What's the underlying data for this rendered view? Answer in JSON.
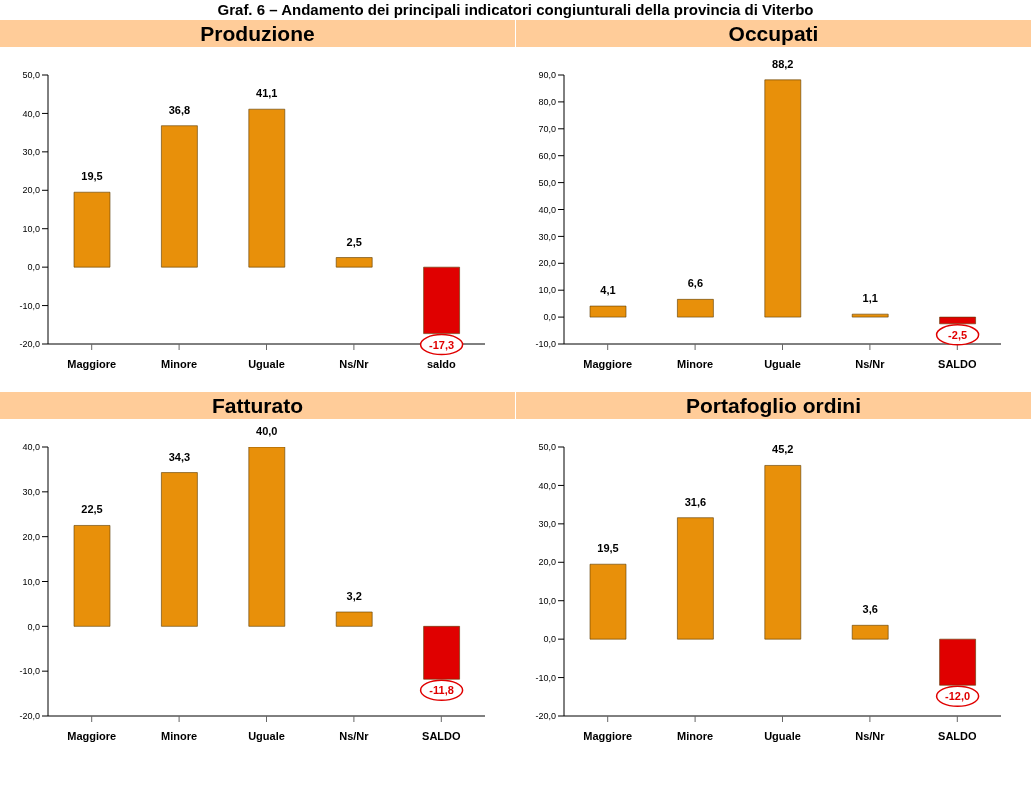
{
  "chart_data": [
    {
      "type": "bar",
      "title": "Produzione",
      "annotations": [
        "Graf. 6 – Andamento dei principali indicatori congiunturali della provincia di Viterbo"
      ],
      "categories": [
        "Maggiore",
        "Minore",
        "Uguale",
        "Ns/Nr",
        "saldo"
      ],
      "values": [
        19.5,
        36.8,
        41.1,
        2.5,
        -17.3
      ],
      "value_labels": [
        "19,5",
        "36,8",
        "41,1",
        "2,5",
        "-17,3"
      ],
      "colors": [
        "#e8900a",
        "#e8900a",
        "#e8900a",
        "#e8900a",
        "#e00000"
      ],
      "ylim": [
        -20,
        50
      ],
      "yticks": [
        {
          "value": -20,
          "label": "-20,0"
        },
        {
          "value": -10,
          "label": "-10,0"
        },
        {
          "value": 0,
          "label": "0,0"
        },
        {
          "value": 10,
          "label": "10,0"
        },
        {
          "value": 20,
          "label": "20,0"
        },
        {
          "value": 30,
          "label": "30,0"
        },
        {
          "value": 40,
          "label": "40,0"
        },
        {
          "value": 50,
          "label": "50,0"
        }
      ],
      "grid": false,
      "legend": false
    },
    {
      "type": "bar",
      "title": "Occupati",
      "categories": [
        "Maggiore",
        "Minore",
        "Uguale",
        "Ns/Nr",
        "SALDO"
      ],
      "values": [
        4.1,
        6.6,
        88.2,
        1.1,
        -2.5
      ],
      "value_labels": [
        "4,1",
        "6,6",
        "88,2",
        "1,1",
        "-2,5"
      ],
      "colors": [
        "#e8900a",
        "#e8900a",
        "#e8900a",
        "#e8900a",
        "#e00000"
      ],
      "ylim": [
        -10,
        90
      ],
      "yticks": [
        {
          "value": -10,
          "label": "-10,0"
        },
        {
          "value": 0,
          "label": "0,0"
        },
        {
          "value": 10,
          "label": "10,0"
        },
        {
          "value": 20,
          "label": "20,0"
        },
        {
          "value": 30,
          "label": "30,0"
        },
        {
          "value": 40,
          "label": "40,0"
        },
        {
          "value": 50,
          "label": "50,0"
        },
        {
          "value": 60,
          "label": "60,0"
        },
        {
          "value": 70,
          "label": "70,0"
        },
        {
          "value": 80,
          "label": "80,0"
        },
        {
          "value": 90,
          "label": "90,0"
        }
      ],
      "grid": false,
      "legend": false
    },
    {
      "type": "bar",
      "title": "Fatturato",
      "categories": [
        "Maggiore",
        "Minore",
        "Uguale",
        "Ns/Nr",
        "SALDO"
      ],
      "values": [
        22.5,
        34.3,
        40.0,
        3.2,
        -11.8
      ],
      "value_labels": [
        "22,5",
        "34,3",
        "40,0",
        "3,2",
        "-11,8"
      ],
      "colors": [
        "#e8900a",
        "#e8900a",
        "#e8900a",
        "#e8900a",
        "#e00000"
      ],
      "ylim": [
        -20,
        40
      ],
      "yticks": [
        {
          "value": -20,
          "label": "-20,0"
        },
        {
          "value": -10,
          "label": "-10,0"
        },
        {
          "value": 0,
          "label": "0,0"
        },
        {
          "value": 10,
          "label": "10,0"
        },
        {
          "value": 20,
          "label": "20,0"
        },
        {
          "value": 30,
          "label": "30,0"
        },
        {
          "value": 40,
          "label": "40,0"
        }
      ],
      "grid": false,
      "legend": false
    },
    {
      "type": "bar",
      "title": "Portafoglio ordini",
      "categories": [
        "Maggiore",
        "Minore",
        "Uguale",
        "Ns/Nr",
        "SALDO"
      ],
      "values": [
        19.5,
        31.6,
        45.2,
        3.6,
        -12.0
      ],
      "value_labels": [
        "19,5",
        "31,6",
        "45,2",
        "3,6",
        "-12,0"
      ],
      "colors": [
        "#e8900a",
        "#e8900a",
        "#e8900a",
        "#e8900a",
        "#e00000"
      ],
      "ylim": [
        -20,
        50
      ],
      "yticks": [
        {
          "value": -20,
          "label": "-20,0"
        },
        {
          "value": -10,
          "label": "-10,0"
        },
        {
          "value": 0,
          "label": "0,0"
        },
        {
          "value": 10,
          "label": "10,0"
        },
        {
          "value": 20,
          "label": "20,0"
        },
        {
          "value": 30,
          "label": "30,0"
        },
        {
          "value": 40,
          "label": "40,0"
        },
        {
          "value": 50,
          "label": "50,0"
        }
      ],
      "grid": false,
      "legend": false
    }
  ]
}
